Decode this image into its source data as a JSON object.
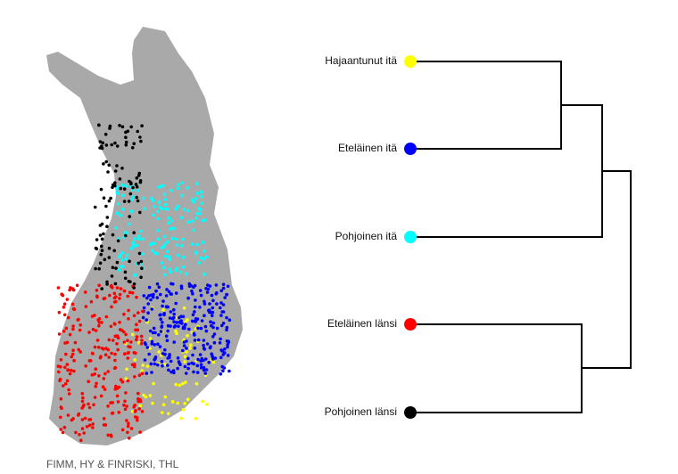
{
  "groups": [
    {
      "label": "Hajaantunut itä",
      "color": "#ffff00"
    },
    {
      "label": "Eteläinen itä",
      "color": "#0000ff"
    },
    {
      "label": "Pohjoinen itä",
      "color": "#00ffff"
    },
    {
      "label": "Eteläinen länsi",
      "color": "#ff0000"
    },
    {
      "label": "Pohjoinen länsi",
      "color": "#000000"
    }
  ],
  "caption": "FIMM, HY & FINRISKI, THL"
}
